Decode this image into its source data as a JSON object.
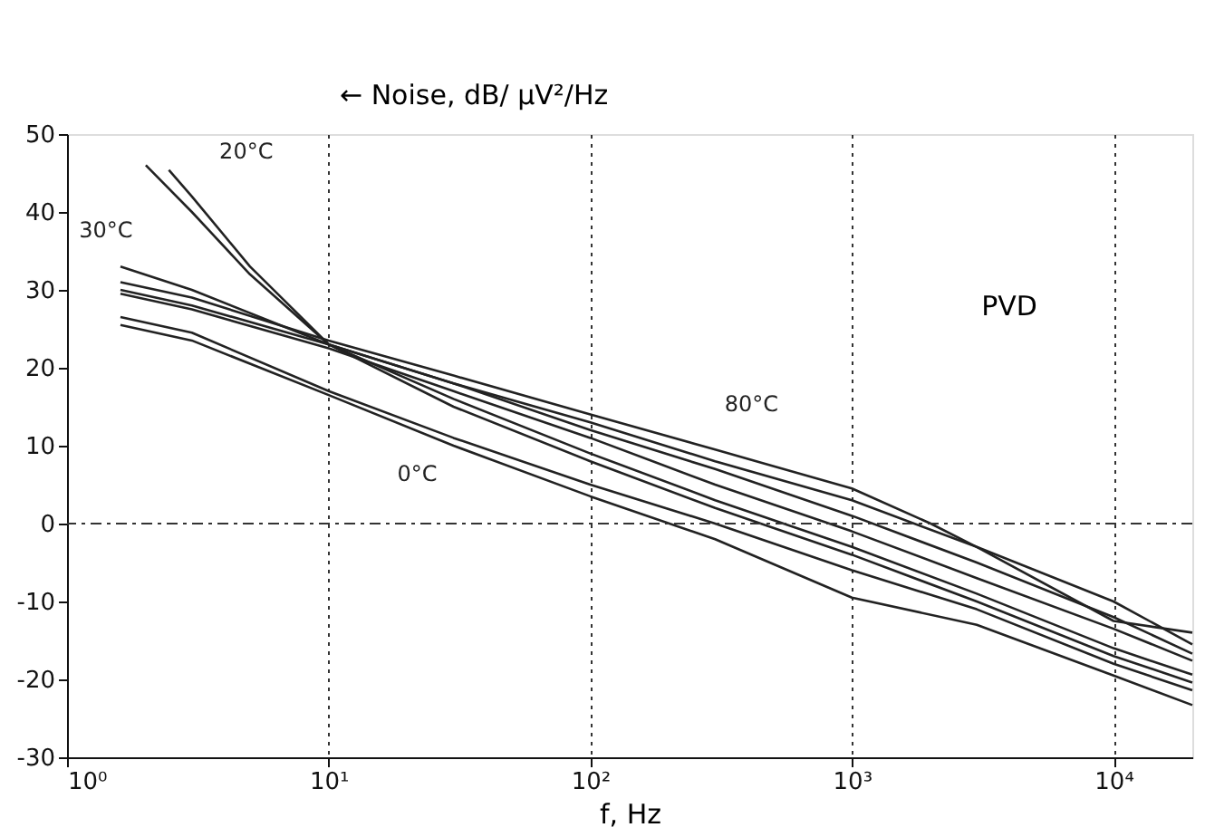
{
  "chart_data": {
    "type": "line",
    "ylabel": "← Noise, dB/ μV²/Hz",
    "xlabel": "f, Hz",
    "annotations": [
      "PVD"
    ],
    "log": "x",
    "grid": "x",
    "line_style": "solid",
    "marker": "none",
    "xlim": [
      1,
      20000
    ],
    "xticks": [
      {
        "value": 1,
        "label": "10⁰"
      },
      {
        "value": 10,
        "label": "10¹"
      },
      {
        "value": 100,
        "label": "10²"
      },
      {
        "value": 1000,
        "label": "10³"
      },
      {
        "value": 10000,
        "label": "10⁴"
      }
    ],
    "ylim": [
      -30,
      50
    ],
    "yticks": [
      -30,
      -20,
      -10,
      0,
      10,
      20,
      30,
      40,
      50
    ],
    "ref_lines": [
      {
        "axis": "y",
        "value": 0,
        "line_style": "dashed",
        "color": "#333333"
      }
    ],
    "series": [
      {
        "name": "30°C",
        "color": "#222222",
        "x": [
          2.0,
          3,
          5,
          10,
          30,
          100,
          300,
          1000,
          3000,
          10000,
          20000
        ],
        "values": [
          46,
          40,
          32,
          23,
          15,
          8,
          2,
          -4,
          -10,
          -17,
          -20.4
        ]
      },
      {
        "name": "20°C",
        "color": "#222222",
        "x": [
          2.45,
          3,
          5,
          10,
          30,
          100,
          300,
          1000,
          3000,
          10000,
          20000
        ],
        "values": [
          45.4,
          42,
          33,
          23,
          16,
          9,
          3,
          -3,
          -9,
          -16,
          -19.4
        ]
      },
      {
        "color": "#222222",
        "x": [
          1.6,
          3,
          10,
          30,
          100,
          300,
          1000,
          3000,
          10000,
          20000
        ],
        "values": [
          33,
          30,
          23,
          18,
          13,
          8,
          3,
          -3,
          -10,
          -15.5
        ]
      },
      {
        "name": "80°C",
        "color": "#222222",
        "x": [
          1.6,
          3,
          10,
          30,
          100,
          300,
          1000,
          2000,
          3000,
          10000,
          20000
        ],
        "values": [
          31,
          29,
          23.5,
          19,
          14,
          9.5,
          4.5,
          0,
          -3,
          -12.5,
          -14
        ]
      },
      {
        "color": "#222222",
        "x": [
          1.6,
          3,
          10,
          30,
          100,
          300,
          1000,
          3000,
          10000,
          20000
        ],
        "values": [
          30,
          28,
          23,
          18,
          12,
          7,
          1,
          -5,
          -12,
          -16.7
        ]
      },
      {
        "color": "#222222",
        "x": [
          1.6,
          3,
          10,
          30,
          100,
          300,
          1000,
          3000,
          10000,
          20000
        ],
        "values": [
          29.5,
          27.5,
          22.5,
          17,
          11,
          5,
          -1,
          -7,
          -13.5,
          -17.6
        ]
      },
      {
        "name": "0°C",
        "color": "#222222",
        "x": [
          1.6,
          3,
          10,
          30,
          100,
          300,
          1000,
          3000,
          10000,
          20000
        ],
        "values": [
          26.5,
          24.5,
          17,
          11,
          5,
          0,
          -6,
          -11,
          -18,
          -21.4
        ]
      },
      {
        "color": "#222222",
        "x": [
          1.6,
          3,
          10,
          30,
          100,
          300,
          1000,
          3000,
          10000,
          20000
        ],
        "values": [
          25.5,
          23.5,
          16.5,
          10,
          3.5,
          -2,
          -9.5,
          -13,
          -19.5,
          -23.3
        ]
      }
    ]
  }
}
